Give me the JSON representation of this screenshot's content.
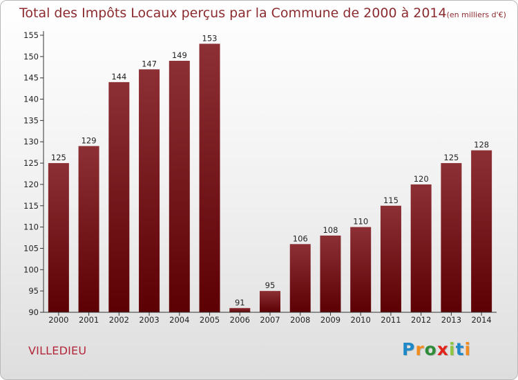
{
  "title": "Total des Impôts Locaux perçus par la Commune de 2000 à 2014",
  "subtitle": "(en milliers d'€)",
  "commune": "VILLEDIEU",
  "logo": {
    "letters": [
      "P",
      "r",
      "o",
      "x",
      "i",
      "t",
      "i"
    ],
    "colors": [
      "#1e88c8",
      "#f28c1e",
      "#2f8d3a",
      "#e2231a",
      "#8dc63f",
      "#1e88c8",
      "#f28c1e"
    ]
  },
  "chart_data": {
    "type": "bar",
    "title": "Total des Impôts Locaux perçus par la Commune de 2000 à 2014",
    "subtitle": "(en milliers d'€)",
    "xlabel": "",
    "ylabel": "",
    "categories": [
      "2000",
      "2001",
      "2002",
      "2003",
      "2004",
      "2005",
      "2006",
      "2007",
      "2008",
      "2009",
      "2010",
      "2011",
      "2012",
      "2013",
      "2014"
    ],
    "values": [
      125,
      129,
      144,
      147,
      149,
      153,
      91,
      95,
      106,
      108,
      110,
      115,
      120,
      125,
      128
    ],
    "ylim": [
      90,
      155
    ],
    "yticks": [
      90,
      95,
      100,
      105,
      110,
      115,
      120,
      125,
      130,
      135,
      140,
      145,
      150,
      155
    ],
    "grid": false,
    "bar_color": "#7a1a1e"
  }
}
